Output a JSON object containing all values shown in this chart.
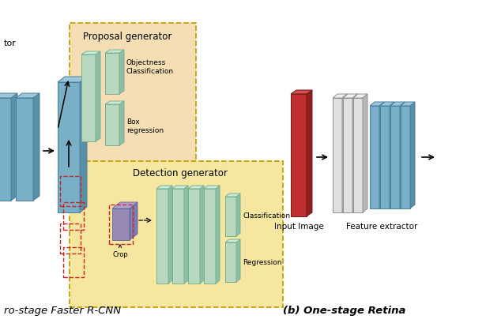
{
  "background_color": "#ffffff",
  "title_left": "ro-stage Faster R-CNN",
  "title_right": "(b) One-stage Retina",
  "label_input_image": "Input Image",
  "label_feature_extractor": "Feature extractor",
  "label_proposal": "Proposal generator",
  "label_detection": "Detection generator",
  "label_objectness": "Objectness\nClassification",
  "label_box": "Box\nregression",
  "label_classification": "Classification",
  "label_regression": "Regression",
  "label_crop": "Crop",
  "label_tor": "tor",
  "bg_color_proposal": "#f5deb3",
  "bg_color_detection": "#f5e6a0",
  "blue_color": "#7aafc8",
  "blue_dark": "#4a7fa0",
  "blue_side": "#5a8fa8",
  "blue_top": "#9dc5d8",
  "green_color": "#b8d8c0",
  "green_dark": "#7ab090",
  "green_side": "#8cbfa8",
  "red_color": "#cc2222",
  "red_input": "#b83030",
  "red_input_side": "#882020",
  "gray_color": "#d0d0d0",
  "gray_dark": "#909090",
  "gray_side": "#b0b0b0",
  "purple_color": "#8878b8",
  "purple_dark": "#6060a0",
  "dashed_color": "#c8a000"
}
